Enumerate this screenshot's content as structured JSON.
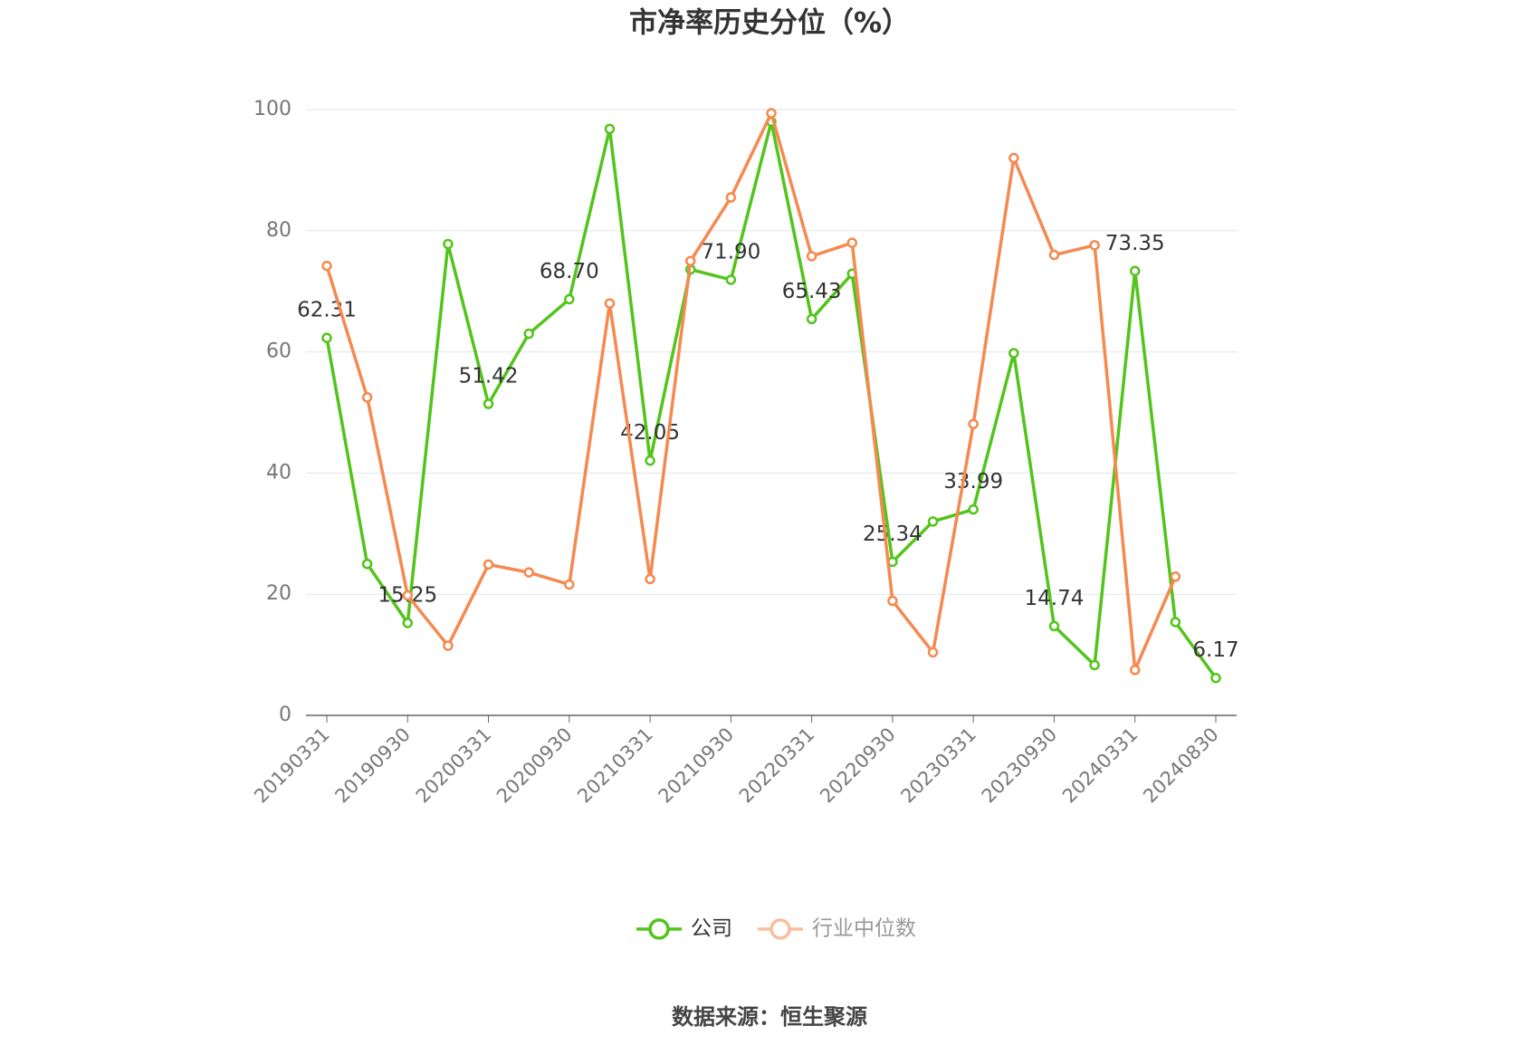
{
  "chart_data": {
    "type": "line",
    "title": "市净率历史分位（%）",
    "source": "数据来源：恒生聚源",
    "categories": [
      "20190331",
      null,
      "20190930",
      null,
      "20200331",
      null,
      "20200930",
      null,
      "20210331",
      null,
      "20210930",
      null,
      "20220331",
      null,
      "20220930",
      null,
      "20230331",
      null,
      "20230930",
      null,
      "20240331",
      null,
      "20240830"
    ],
    "series": [
      {
        "name": "公司",
        "color": "#52c41a",
        "values": [
          62.31,
          25,
          15.25,
          77.8,
          51.42,
          63,
          68.7,
          96.8,
          42.05,
          73.6,
          71.9,
          98,
          65.43,
          72.9,
          25.34,
          32,
          33.99,
          59.8,
          14.74,
          8.3,
          73.35,
          15.4,
          6.17
        ],
        "value_labels": [
          "62.31",
          null,
          "15.25",
          null,
          "51.42",
          null,
          "68.70",
          null,
          "42.05",
          null,
          "71.90",
          null,
          "65.43",
          null,
          "25.34",
          null,
          "33.99",
          null,
          "14.74",
          null,
          "73.35",
          null,
          "6.17"
        ]
      },
      {
        "name": "行业中位数",
        "color": "#f5894f",
        "values": [
          74.2,
          52.5,
          19.8,
          11.5,
          24.9,
          23.6,
          21.6,
          68,
          22.5,
          75,
          85.5,
          99.4,
          75.8,
          78,
          18.9,
          10.4,
          48.1,
          92,
          76,
          77.6,
          7.5,
          22.9,
          null
        ]
      }
    ],
    "ylim": [
      0,
      100
    ],
    "yticks": [
      0,
      20,
      40,
      60,
      80,
      100
    ],
    "grid": true
  }
}
